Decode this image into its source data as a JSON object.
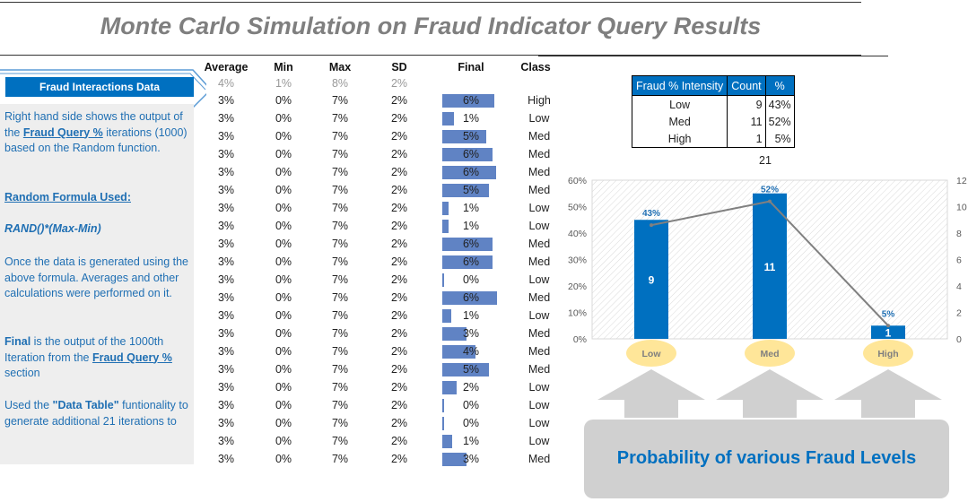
{
  "title": "Monte Carlo Simulation on Fraud Indicator Query Results",
  "left_panel": {
    "label": "Fraud Interactions Data",
    "p1_a": "Right hand side shows the output of the ",
    "p1_link": "Fraud Query %",
    "p1_b": " iterations (1000) based on the Random function.",
    "formula_heading": "Random Formula Used:",
    "formula": "RAND()*(Max-Min)",
    "p3": "Once the data is generated using the above formula. Averages and other calculations were performed on it.",
    "p4_bold": "Final",
    "p4_a": "  is the output of the 1000th Iteration from the ",
    "p4_link": "Fraud Query %",
    "p4_b": " section",
    "p5_a": "Used the ",
    "p5_bold": "\"Data Table\"",
    "p5_b": " funtionality to generate additional 21 iterations to"
  },
  "table": {
    "headers": [
      "Average",
      "Min",
      "Max",
      "SD",
      "Final",
      "Class"
    ],
    "first_row": [
      "4%",
      "1%",
      "8%",
      "2%"
    ],
    "rows": [
      [
        "3%",
        "0%",
        "7%",
        "2%",
        "6%",
        "High"
      ],
      [
        "3%",
        "0%",
        "7%",
        "2%",
        "1%",
        "Low"
      ],
      [
        "3%",
        "0%",
        "7%",
        "2%",
        "5%",
        "Med"
      ],
      [
        "3%",
        "0%",
        "7%",
        "2%",
        "6%",
        "Med"
      ],
      [
        "3%",
        "0%",
        "7%",
        "2%",
        "6%",
        "Med"
      ],
      [
        "3%",
        "0%",
        "7%",
        "2%",
        "5%",
        "Med"
      ],
      [
        "3%",
        "0%",
        "7%",
        "2%",
        "1%",
        "Low"
      ],
      [
        "3%",
        "0%",
        "7%",
        "2%",
        "1%",
        "Low"
      ],
      [
        "3%",
        "0%",
        "7%",
        "2%",
        "6%",
        "Med"
      ],
      [
        "3%",
        "0%",
        "7%",
        "2%",
        "6%",
        "Med"
      ],
      [
        "3%",
        "0%",
        "7%",
        "2%",
        "0%",
        "Low"
      ],
      [
        "3%",
        "0%",
        "7%",
        "2%",
        "6%",
        "Med"
      ],
      [
        "3%",
        "0%",
        "7%",
        "2%",
        "1%",
        "Low"
      ],
      [
        "3%",
        "0%",
        "7%",
        "2%",
        "3%",
        "Med"
      ],
      [
        "3%",
        "0%",
        "7%",
        "2%",
        "4%",
        "Med"
      ],
      [
        "3%",
        "0%",
        "7%",
        "2%",
        "5%",
        "Med"
      ],
      [
        "3%",
        "0%",
        "7%",
        "2%",
        "2%",
        "Low"
      ],
      [
        "3%",
        "0%",
        "7%",
        "2%",
        "0%",
        "Low"
      ],
      [
        "3%",
        "0%",
        "7%",
        "2%",
        "0%",
        "Low"
      ],
      [
        "3%",
        "0%",
        "7%",
        "2%",
        "1%",
        "Low"
      ],
      [
        "3%",
        "0%",
        "7%",
        "2%",
        "3%",
        "Med"
      ]
    ],
    "final_bar_fraction": [
      0.95,
      0.22,
      0.8,
      0.92,
      0.98,
      0.85,
      0.12,
      0.12,
      0.92,
      0.92,
      0.04,
      1.0,
      0.16,
      0.45,
      0.6,
      0.85,
      0.27,
      0.04,
      0.04,
      0.18,
      0.45
    ],
    "bar_color": "#6083c4"
  },
  "summary": {
    "headers": [
      "Fraud % Intensity",
      "Count",
      "%"
    ],
    "rows": [
      [
        "Low",
        "9",
        "43%"
      ],
      [
        "Med",
        "11",
        "52%"
      ],
      [
        "High",
        "1",
        "5%"
      ]
    ],
    "total": "21",
    "header_color": "#0070c0"
  },
  "chart_data": {
    "type": "bar",
    "categories": [
      "Low",
      "Med",
      "High"
    ],
    "series": [
      {
        "type": "bar",
        "axis": "right",
        "values": [
          9,
          11,
          1
        ],
        "data_labels": [
          "9",
          "11",
          "1"
        ],
        "color": "#0070c0"
      },
      {
        "type": "line",
        "axis": "left",
        "values": [
          0.43,
          0.52,
          0.05
        ],
        "data_labels": [
          "43%",
          "52%",
          "5%"
        ],
        "color": "#808080"
      }
    ],
    "y_left": {
      "ylim": [
        0,
        0.6
      ],
      "ticks": [
        "0%",
        "10%",
        "20%",
        "30%",
        "40%",
        "50%",
        "60%"
      ]
    },
    "y_right": {
      "ylim": [
        0,
        12
      ],
      "ticks": [
        "0",
        "2",
        "4",
        "6",
        "8",
        "10",
        "12"
      ]
    },
    "category_bubble_color": "#ffe699",
    "arrow_color": "#d0d0d0",
    "caption": "Probability  of various Fraud Levels"
  }
}
